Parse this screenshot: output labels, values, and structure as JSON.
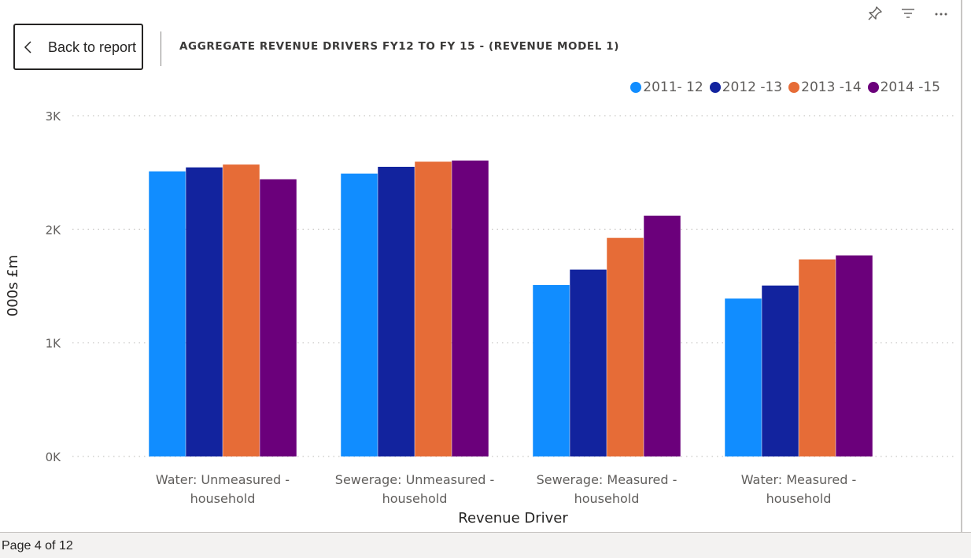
{
  "header": {
    "back_label": "Back to report",
    "title": "AGGREGATE REVENUE DRIVERS FY12 TO FY 15 - (REVENUE MODEL 1)"
  },
  "toolbar": {
    "pin_icon": "pin-icon",
    "filter_icon": "filter-icon",
    "more_icon": "more-options-icon"
  },
  "status": {
    "page": "Page 4 of 12"
  },
  "chart_data": {
    "type": "bar",
    "title": "AGGREGATE REVENUE DRIVERS FY12 TO FY 15 - (REVENUE MODEL 1)",
    "xlabel": "Revenue Driver",
    "ylabel": "000s £m",
    "ylim": [
      0,
      3000
    ],
    "yticks": [
      0,
      1000,
      2000,
      3000
    ],
    "ytick_labels": [
      "0K",
      "1K",
      "2K",
      "3K"
    ],
    "grid": true,
    "legend_position": "top-right",
    "categories": [
      [
        "Water: Unmeasured -",
        "household"
      ],
      [
        "Sewerage: Unmeasured -",
        "household"
      ],
      [
        "Sewerage: Measured -",
        "household"
      ],
      [
        "Water: Measured -",
        "household"
      ]
    ],
    "series": [
      {
        "name": "2011- 12",
        "color": "#118dff",
        "values": [
          2510,
          2490,
          1510,
          1390
        ]
      },
      {
        "name": "2012 -13",
        "color": "#12239e",
        "values": [
          2545,
          2550,
          1645,
          1505
        ]
      },
      {
        "name": "2013 -14",
        "color": "#e66c37",
        "values": [
          2570,
          2595,
          1925,
          1735
        ]
      },
      {
        "name": "2014 -15",
        "color": "#6b007b",
        "values": [
          2440,
          2605,
          2120,
          1770
        ]
      }
    ]
  }
}
